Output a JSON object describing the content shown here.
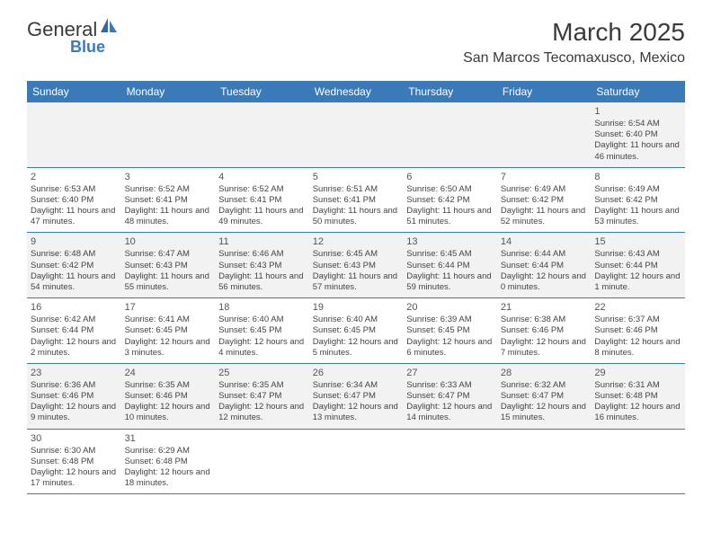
{
  "logo": {
    "text1": "General",
    "text2": "Blue"
  },
  "title": "March 2025",
  "location": "San Marcos Tecomaxusco, Mexico",
  "day_names": [
    "Sunday",
    "Monday",
    "Tuesday",
    "Wednesday",
    "Thursday",
    "Friday",
    "Saturday"
  ],
  "colors": {
    "header_bg": "#3a7ab8",
    "header_fg": "#ffffff",
    "cell_border": "#3a7ab8",
    "alt_row_bg": "#f2f2f2",
    "logo_accent": "#3a7ab8",
    "text": "#3a3a3a"
  },
  "days": {
    "1": {
      "sunrise": "6:54 AM",
      "sunset": "6:40 PM",
      "daylight": "11 hours and 46 minutes."
    },
    "2": {
      "sunrise": "6:53 AM",
      "sunset": "6:40 PM",
      "daylight": "11 hours and 47 minutes."
    },
    "3": {
      "sunrise": "6:52 AM",
      "sunset": "6:41 PM",
      "daylight": "11 hours and 48 minutes."
    },
    "4": {
      "sunrise": "6:52 AM",
      "sunset": "6:41 PM",
      "daylight": "11 hours and 49 minutes."
    },
    "5": {
      "sunrise": "6:51 AM",
      "sunset": "6:41 PM",
      "daylight": "11 hours and 50 minutes."
    },
    "6": {
      "sunrise": "6:50 AM",
      "sunset": "6:42 PM",
      "daylight": "11 hours and 51 minutes."
    },
    "7": {
      "sunrise": "6:49 AM",
      "sunset": "6:42 PM",
      "daylight": "11 hours and 52 minutes."
    },
    "8": {
      "sunrise": "6:49 AM",
      "sunset": "6:42 PM",
      "daylight": "11 hours and 53 minutes."
    },
    "9": {
      "sunrise": "6:48 AM",
      "sunset": "6:42 PM",
      "daylight": "11 hours and 54 minutes."
    },
    "10": {
      "sunrise": "6:47 AM",
      "sunset": "6:43 PM",
      "daylight": "11 hours and 55 minutes."
    },
    "11": {
      "sunrise": "6:46 AM",
      "sunset": "6:43 PM",
      "daylight": "11 hours and 56 minutes."
    },
    "12": {
      "sunrise": "6:45 AM",
      "sunset": "6:43 PM",
      "daylight": "11 hours and 57 minutes."
    },
    "13": {
      "sunrise": "6:45 AM",
      "sunset": "6:44 PM",
      "daylight": "11 hours and 59 minutes."
    },
    "14": {
      "sunrise": "6:44 AM",
      "sunset": "6:44 PM",
      "daylight": "12 hours and 0 minutes."
    },
    "15": {
      "sunrise": "6:43 AM",
      "sunset": "6:44 PM",
      "daylight": "12 hours and 1 minute."
    },
    "16": {
      "sunrise": "6:42 AM",
      "sunset": "6:44 PM",
      "daylight": "12 hours and 2 minutes."
    },
    "17": {
      "sunrise": "6:41 AM",
      "sunset": "6:45 PM",
      "daylight": "12 hours and 3 minutes."
    },
    "18": {
      "sunrise": "6:40 AM",
      "sunset": "6:45 PM",
      "daylight": "12 hours and 4 minutes."
    },
    "19": {
      "sunrise": "6:40 AM",
      "sunset": "6:45 PM",
      "daylight": "12 hours and 5 minutes."
    },
    "20": {
      "sunrise": "6:39 AM",
      "sunset": "6:45 PM",
      "daylight": "12 hours and 6 minutes."
    },
    "21": {
      "sunrise": "6:38 AM",
      "sunset": "6:46 PM",
      "daylight": "12 hours and 7 minutes."
    },
    "22": {
      "sunrise": "6:37 AM",
      "sunset": "6:46 PM",
      "daylight": "12 hours and 8 minutes."
    },
    "23": {
      "sunrise": "6:36 AM",
      "sunset": "6:46 PM",
      "daylight": "12 hours and 9 minutes."
    },
    "24": {
      "sunrise": "6:35 AM",
      "sunset": "6:46 PM",
      "daylight": "12 hours and 10 minutes."
    },
    "25": {
      "sunrise": "6:35 AM",
      "sunset": "6:47 PM",
      "daylight": "12 hours and 12 minutes."
    },
    "26": {
      "sunrise": "6:34 AM",
      "sunset": "6:47 PM",
      "daylight": "12 hours and 13 minutes."
    },
    "27": {
      "sunrise": "6:33 AM",
      "sunset": "6:47 PM",
      "daylight": "12 hours and 14 minutes."
    },
    "28": {
      "sunrise": "6:32 AM",
      "sunset": "6:47 PM",
      "daylight": "12 hours and 15 minutes."
    },
    "29": {
      "sunrise": "6:31 AM",
      "sunset": "6:48 PM",
      "daylight": "12 hours and 16 minutes."
    },
    "30": {
      "sunrise": "6:30 AM",
      "sunset": "6:48 PM",
      "daylight": "12 hours and 17 minutes."
    },
    "31": {
      "sunrise": "6:29 AM",
      "sunset": "6:48 PM",
      "daylight": "12 hours and 18 minutes."
    }
  },
  "labels": {
    "sunrise": "Sunrise: ",
    "sunset": "Sunset: ",
    "daylight": "Daylight: "
  },
  "layout": {
    "first_weekday_index": 6,
    "num_days": 31,
    "weeks": [
      [
        null,
        null,
        null,
        null,
        null,
        null,
        "1"
      ],
      [
        "2",
        "3",
        "4",
        "5",
        "6",
        "7",
        "8"
      ],
      [
        "9",
        "10",
        "11",
        "12",
        "13",
        "14",
        "15"
      ],
      [
        "16",
        "17",
        "18",
        "19",
        "20",
        "21",
        "22"
      ],
      [
        "23",
        "24",
        "25",
        "26",
        "27",
        "28",
        "29"
      ],
      [
        "30",
        "31",
        null,
        null,
        null,
        null,
        null
      ]
    ],
    "shaded_weeks": [
      0,
      2,
      4
    ]
  }
}
